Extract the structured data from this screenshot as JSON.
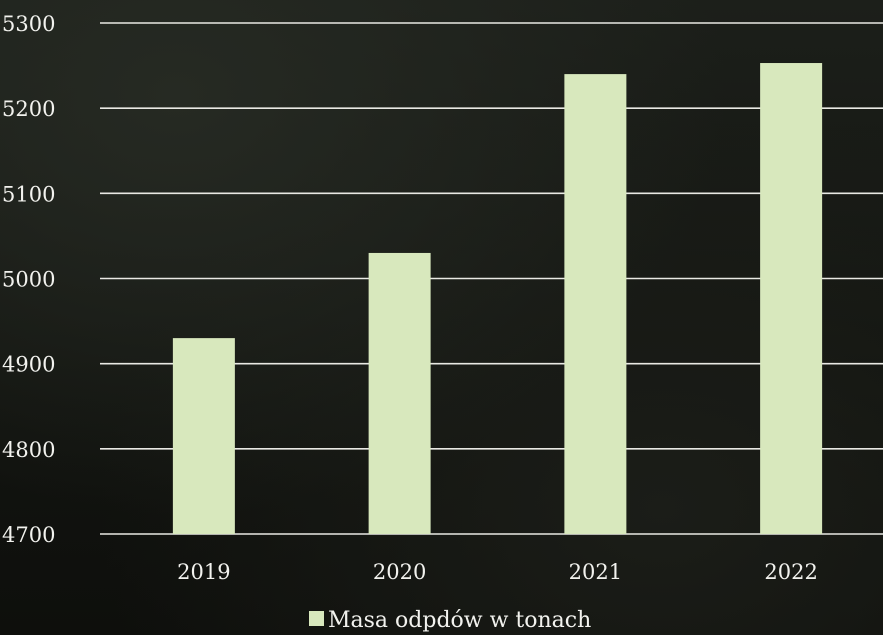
{
  "chart_data": {
    "type": "bar",
    "categories": [
      "2019",
      "2020",
      "2021",
      "2022"
    ],
    "series": [
      {
        "name": "Masa odpdów w tonach",
        "values": [
          4930,
          5030,
          5240,
          5253
        ],
        "color": "#d8e8bd"
      }
    ],
    "ylim": [
      4700,
      5300
    ],
    "yticks": [
      4700,
      4800,
      4900,
      5000,
      5100,
      5200,
      5300
    ],
    "ytick_labels": [
      "4700",
      "4800",
      "4900",
      "5000",
      "5100",
      "5200",
      "5300"
    ],
    "grid": true,
    "legend_position": "bottom-center",
    "gridline_color": "#e9e9e4",
    "text_color": "#f2f2ee"
  }
}
